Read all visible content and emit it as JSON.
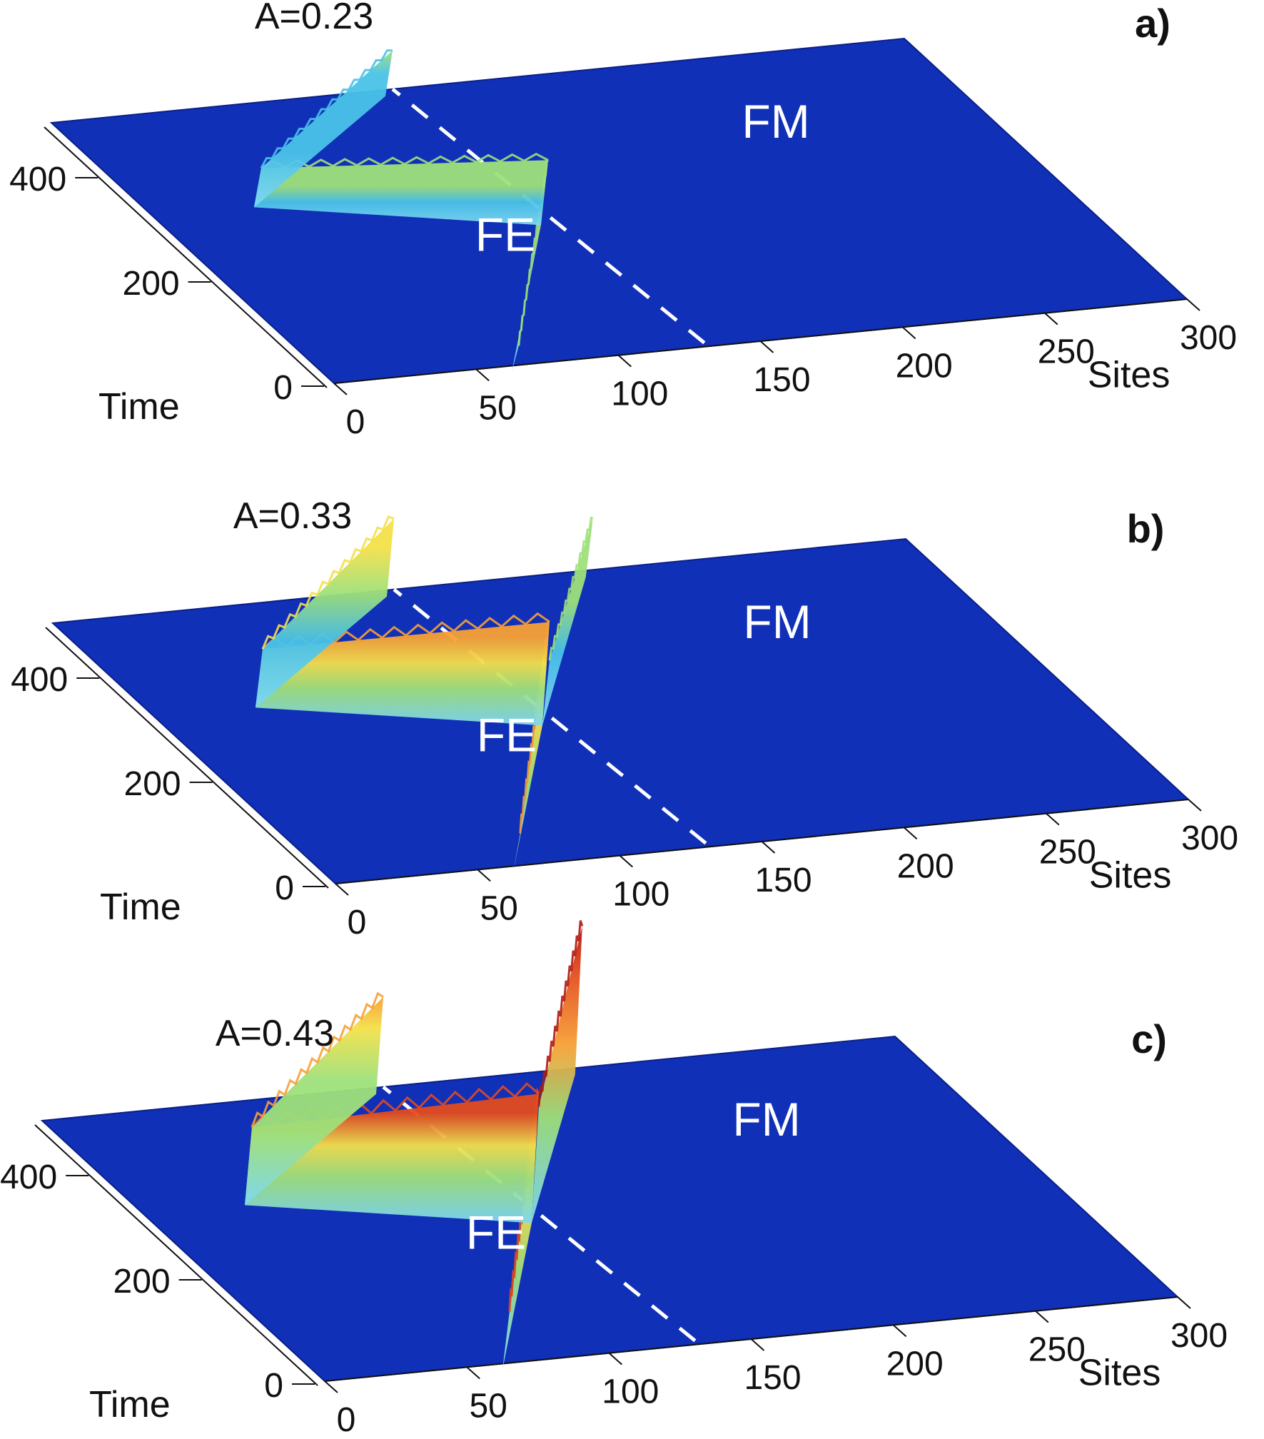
{
  "figure": {
    "colors": {
      "surface": "#1030b8",
      "surface_edge": "#0a1f86",
      "boundary_line": "#ffffff",
      "colormap": [
        "#7fd8f0",
        "#49c2e8",
        "#9ee07a",
        "#f4e04a",
        "#f7a035",
        "#e24a1e",
        "#b01a10"
      ]
    }
  },
  "chart_data": [
    {
      "type": "surface",
      "panel_letter": "a)",
      "title": "A=0.23",
      "xlabel": "Sites",
      "ylabel": "Time",
      "xlim": [
        0,
        300
      ],
      "ylim": [
        0,
        500
      ],
      "xticks": [
        0,
        50,
        100,
        150,
        200,
        250,
        300
      ],
      "yticks": [
        0,
        200,
        400
      ],
      "regions": [
        {
          "text": "FE",
          "sites": 100,
          "time": 200
        },
        {
          "text": "FM",
          "sites": 225,
          "time": 350
        }
      ],
      "interface_line": {
        "from": {
          "sites": 140,
          "time": 0
        },
        "to": {
          "sites": 120,
          "time": 500
        }
      },
      "wave_path": [
        {
          "sites": 65,
          "time": 0,
          "amp": 0.05
        },
        {
          "sites": 125,
          "time": 250,
          "amp": 0.35
        },
        {
          "sites": 40,
          "time": 330,
          "amp": 0.15
        },
        {
          "sites": 120,
          "time": 500,
          "amp": 0.2
        }
      ],
      "transmitted_path": [],
      "peak_level": 0.35
    },
    {
      "type": "surface",
      "panel_letter": "b)",
      "title": "A=0.33",
      "xlabel": "Sites",
      "ylabel": "Time",
      "xlim": [
        0,
        300
      ],
      "ylim": [
        0,
        500
      ],
      "xticks": [
        0,
        50,
        100,
        150,
        200,
        250,
        300
      ],
      "yticks": [
        0,
        200,
        400
      ],
      "regions": [
        {
          "text": "FE",
          "sites": 100,
          "time": 200
        },
        {
          "text": "FM",
          "sites": 225,
          "time": 350
        }
      ],
      "interface_line": {
        "from": {
          "sites": 140,
          "time": 0
        },
        "to": {
          "sites": 120,
          "time": 500
        }
      },
      "wave_path": [
        {
          "sites": 65,
          "time": 0,
          "amp": 0.15
        },
        {
          "sites": 125,
          "time": 250,
          "amp": 0.65
        },
        {
          "sites": 40,
          "time": 330,
          "amp": 0.3
        },
        {
          "sites": 120,
          "time": 500,
          "amp": 0.45
        }
      ],
      "transmitted_path": [
        {
          "sites": 125,
          "time": 250,
          "amp": 0.35
        },
        {
          "sites": 190,
          "time": 500,
          "amp": 0.3
        }
      ],
      "peak_level": 0.65
    },
    {
      "type": "surface",
      "panel_letter": "c)",
      "title": "A=0.43",
      "xlabel": "Sites",
      "ylabel": "Time",
      "xlim": [
        0,
        300
      ],
      "ylim": [
        0,
        500
      ],
      "xticks": [
        0,
        50,
        100,
        150,
        200,
        250,
        300
      ],
      "yticks": [
        0,
        200,
        400
      ],
      "regions": [
        {
          "text": "FE",
          "sites": 100,
          "time": 200
        },
        {
          "text": "FM",
          "sites": 225,
          "time": 350
        }
      ],
      "interface_line": {
        "from": {
          "sites": 140,
          "time": 0
        },
        "to": {
          "sites": 120,
          "time": 500
        }
      },
      "wave_path": [
        {
          "sites": 65,
          "time": 0,
          "amp": 0.3
        },
        {
          "sites": 125,
          "time": 250,
          "amp": 0.85
        },
        {
          "sites": 40,
          "time": 330,
          "amp": 0.45
        },
        {
          "sites": 120,
          "time": 500,
          "amp": 0.6
        }
      ],
      "transmitted_path": [
        {
          "sites": 125,
          "time": 250,
          "amp": 0.75
        },
        {
          "sites": 190,
          "time": 500,
          "amp": 1.0
        }
      ],
      "peak_level": 1.0
    }
  ]
}
